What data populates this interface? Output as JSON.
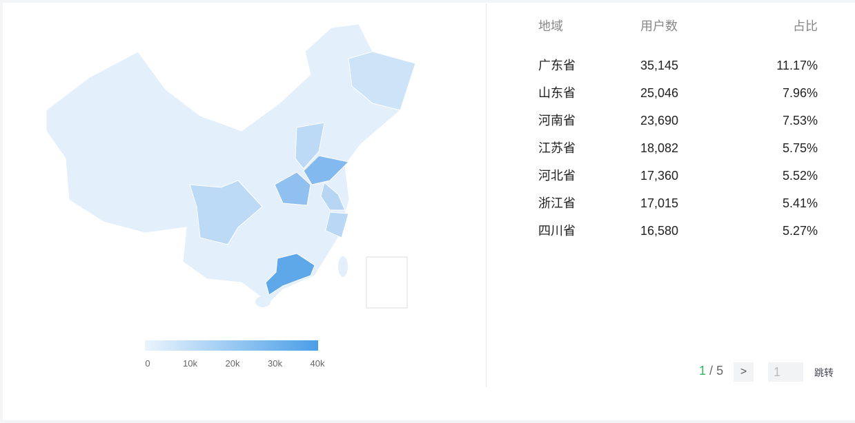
{
  "legend": {
    "ticks": [
      "0",
      "10k",
      "20k",
      "30k",
      "40k"
    ]
  },
  "table": {
    "headers": [
      "地域",
      "用户数",
      "占比"
    ],
    "rows": [
      [
        "广东省",
        "35,145",
        "11.17%"
      ],
      [
        "山东省",
        "25,046",
        "7.96%"
      ],
      [
        "河南省",
        "23,690",
        "7.53%"
      ],
      [
        "江苏省",
        "18,082",
        "5.75%"
      ],
      [
        "河北省",
        "17,360",
        "5.52%"
      ],
      [
        "浙江省",
        "17,015",
        "5.41%"
      ],
      [
        "四川省",
        "16,580",
        "5.27%"
      ]
    ]
  },
  "pagination": {
    "current": "1",
    "separator": "/",
    "total": "5",
    "input_placeholder": "1",
    "jump": "跳转"
  }
}
